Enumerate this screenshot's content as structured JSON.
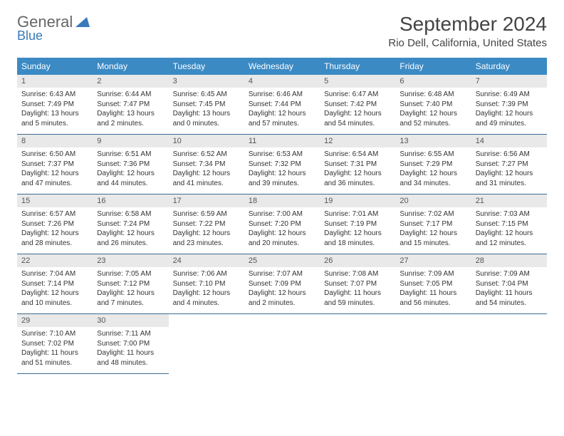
{
  "logo": {
    "main": "General",
    "accent": "Blue"
  },
  "title": "September 2024",
  "location": "Rio Dell, California, United States",
  "colors": {
    "header_bg": "#3b8ac4",
    "header_text": "#ffffff",
    "daynum_bg": "#e9e9e9",
    "row_border": "#3b6a8f",
    "title_color": "#444444",
    "body_text": "#333333",
    "logo_accent": "#3a7ab8"
  },
  "typography": {
    "title_fontsize": 28,
    "location_fontsize": 15,
    "header_fontsize": 12,
    "daynum_fontsize": 11,
    "body_fontsize": 10
  },
  "dayNames": [
    "Sunday",
    "Monday",
    "Tuesday",
    "Wednesday",
    "Thursday",
    "Friday",
    "Saturday"
  ],
  "weeks": [
    [
      {
        "n": "1",
        "sr": "Sunrise: 6:43 AM",
        "ss": "Sunset: 7:49 PM",
        "dl": "Daylight: 13 hours and 5 minutes."
      },
      {
        "n": "2",
        "sr": "Sunrise: 6:44 AM",
        "ss": "Sunset: 7:47 PM",
        "dl": "Daylight: 13 hours and 2 minutes."
      },
      {
        "n": "3",
        "sr": "Sunrise: 6:45 AM",
        "ss": "Sunset: 7:45 PM",
        "dl": "Daylight: 13 hours and 0 minutes."
      },
      {
        "n": "4",
        "sr": "Sunrise: 6:46 AM",
        "ss": "Sunset: 7:44 PM",
        "dl": "Daylight: 12 hours and 57 minutes."
      },
      {
        "n": "5",
        "sr": "Sunrise: 6:47 AM",
        "ss": "Sunset: 7:42 PM",
        "dl": "Daylight: 12 hours and 54 minutes."
      },
      {
        "n": "6",
        "sr": "Sunrise: 6:48 AM",
        "ss": "Sunset: 7:40 PM",
        "dl": "Daylight: 12 hours and 52 minutes."
      },
      {
        "n": "7",
        "sr": "Sunrise: 6:49 AM",
        "ss": "Sunset: 7:39 PM",
        "dl": "Daylight: 12 hours and 49 minutes."
      }
    ],
    [
      {
        "n": "8",
        "sr": "Sunrise: 6:50 AM",
        "ss": "Sunset: 7:37 PM",
        "dl": "Daylight: 12 hours and 47 minutes."
      },
      {
        "n": "9",
        "sr": "Sunrise: 6:51 AM",
        "ss": "Sunset: 7:36 PM",
        "dl": "Daylight: 12 hours and 44 minutes."
      },
      {
        "n": "10",
        "sr": "Sunrise: 6:52 AM",
        "ss": "Sunset: 7:34 PM",
        "dl": "Daylight: 12 hours and 41 minutes."
      },
      {
        "n": "11",
        "sr": "Sunrise: 6:53 AM",
        "ss": "Sunset: 7:32 PM",
        "dl": "Daylight: 12 hours and 39 minutes."
      },
      {
        "n": "12",
        "sr": "Sunrise: 6:54 AM",
        "ss": "Sunset: 7:31 PM",
        "dl": "Daylight: 12 hours and 36 minutes."
      },
      {
        "n": "13",
        "sr": "Sunrise: 6:55 AM",
        "ss": "Sunset: 7:29 PM",
        "dl": "Daylight: 12 hours and 34 minutes."
      },
      {
        "n": "14",
        "sr": "Sunrise: 6:56 AM",
        "ss": "Sunset: 7:27 PM",
        "dl": "Daylight: 12 hours and 31 minutes."
      }
    ],
    [
      {
        "n": "15",
        "sr": "Sunrise: 6:57 AM",
        "ss": "Sunset: 7:26 PM",
        "dl": "Daylight: 12 hours and 28 minutes."
      },
      {
        "n": "16",
        "sr": "Sunrise: 6:58 AM",
        "ss": "Sunset: 7:24 PM",
        "dl": "Daylight: 12 hours and 26 minutes."
      },
      {
        "n": "17",
        "sr": "Sunrise: 6:59 AM",
        "ss": "Sunset: 7:22 PM",
        "dl": "Daylight: 12 hours and 23 minutes."
      },
      {
        "n": "18",
        "sr": "Sunrise: 7:00 AM",
        "ss": "Sunset: 7:20 PM",
        "dl": "Daylight: 12 hours and 20 minutes."
      },
      {
        "n": "19",
        "sr": "Sunrise: 7:01 AM",
        "ss": "Sunset: 7:19 PM",
        "dl": "Daylight: 12 hours and 18 minutes."
      },
      {
        "n": "20",
        "sr": "Sunrise: 7:02 AM",
        "ss": "Sunset: 7:17 PM",
        "dl": "Daylight: 12 hours and 15 minutes."
      },
      {
        "n": "21",
        "sr": "Sunrise: 7:03 AM",
        "ss": "Sunset: 7:15 PM",
        "dl": "Daylight: 12 hours and 12 minutes."
      }
    ],
    [
      {
        "n": "22",
        "sr": "Sunrise: 7:04 AM",
        "ss": "Sunset: 7:14 PM",
        "dl": "Daylight: 12 hours and 10 minutes."
      },
      {
        "n": "23",
        "sr": "Sunrise: 7:05 AM",
        "ss": "Sunset: 7:12 PM",
        "dl": "Daylight: 12 hours and 7 minutes."
      },
      {
        "n": "24",
        "sr": "Sunrise: 7:06 AM",
        "ss": "Sunset: 7:10 PM",
        "dl": "Daylight: 12 hours and 4 minutes."
      },
      {
        "n": "25",
        "sr": "Sunrise: 7:07 AM",
        "ss": "Sunset: 7:09 PM",
        "dl": "Daylight: 12 hours and 2 minutes."
      },
      {
        "n": "26",
        "sr": "Sunrise: 7:08 AM",
        "ss": "Sunset: 7:07 PM",
        "dl": "Daylight: 11 hours and 59 minutes."
      },
      {
        "n": "27",
        "sr": "Sunrise: 7:09 AM",
        "ss": "Sunset: 7:05 PM",
        "dl": "Daylight: 11 hours and 56 minutes."
      },
      {
        "n": "28",
        "sr": "Sunrise: 7:09 AM",
        "ss": "Sunset: 7:04 PM",
        "dl": "Daylight: 11 hours and 54 minutes."
      }
    ],
    [
      {
        "n": "29",
        "sr": "Sunrise: 7:10 AM",
        "ss": "Sunset: 7:02 PM",
        "dl": "Daylight: 11 hours and 51 minutes."
      },
      {
        "n": "30",
        "sr": "Sunrise: 7:11 AM",
        "ss": "Sunset: 7:00 PM",
        "dl": "Daylight: 11 hours and 48 minutes."
      },
      null,
      null,
      null,
      null,
      null
    ]
  ]
}
